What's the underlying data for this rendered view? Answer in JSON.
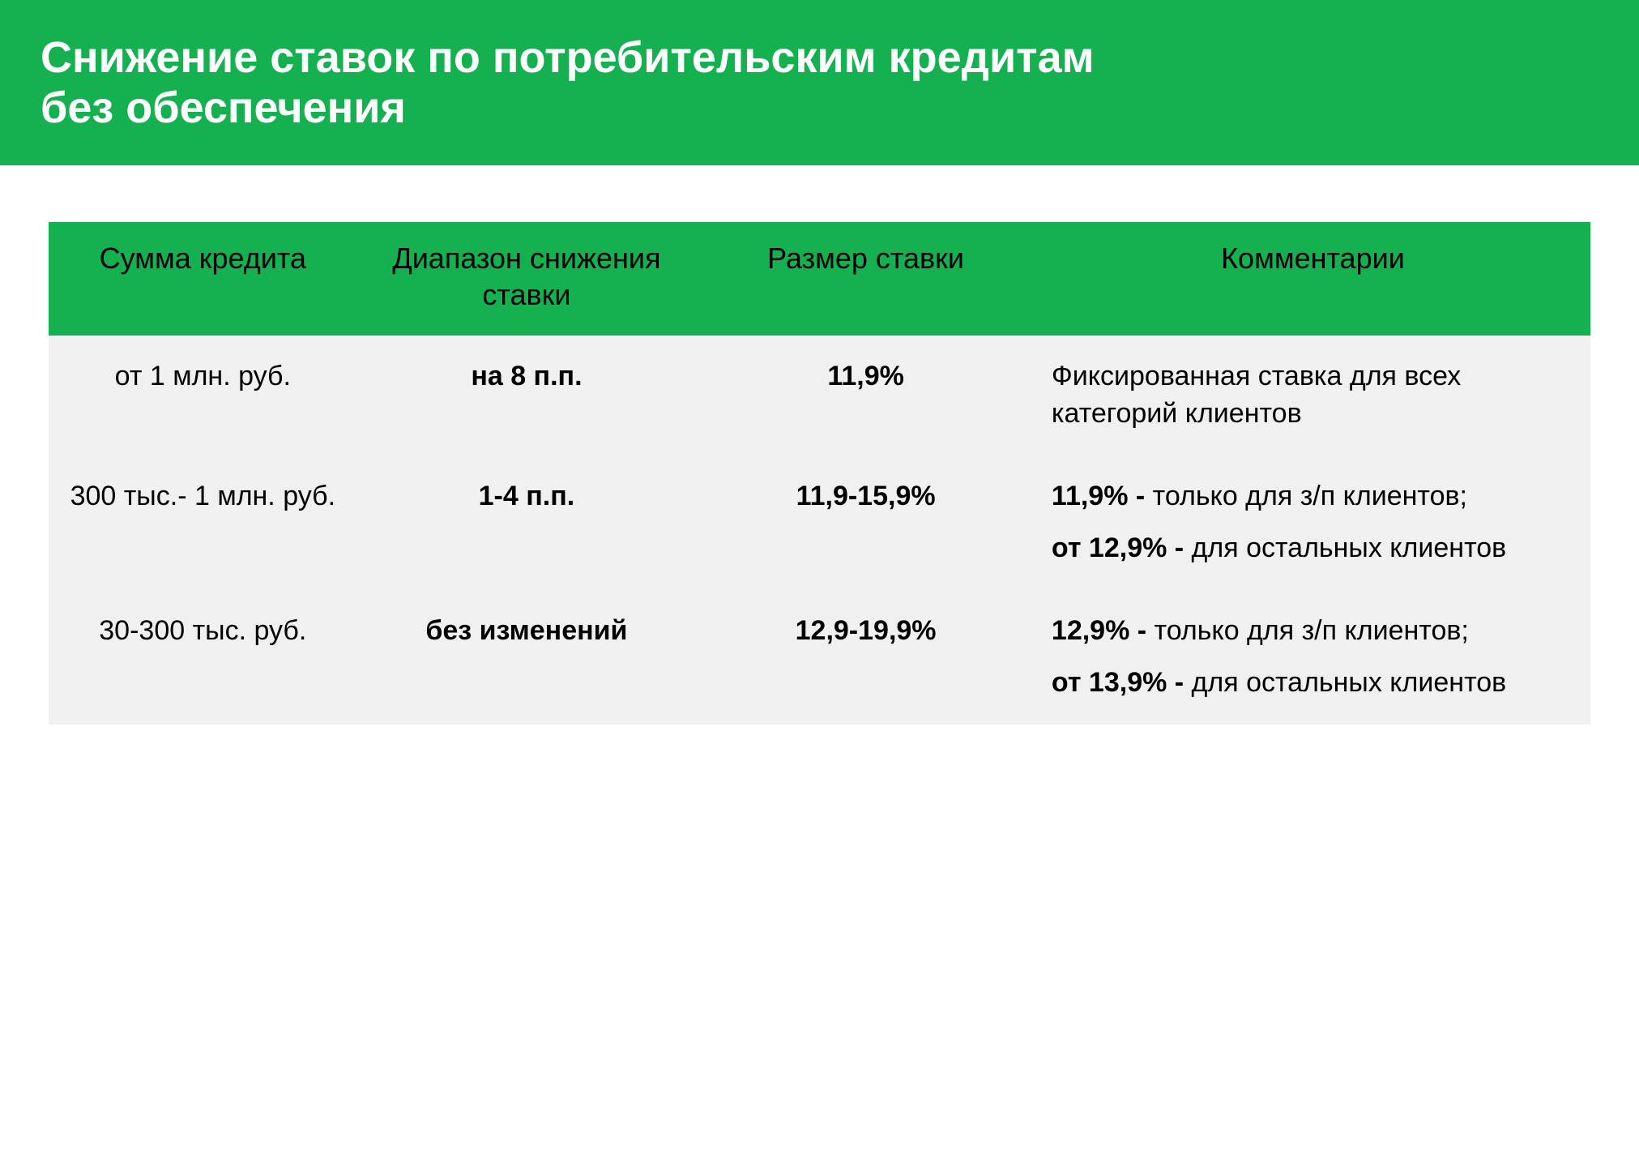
{
  "colors": {
    "brand_green": "#15b050",
    "table_bg": "#f0f0f0",
    "page_bg": "#ffffff",
    "header_text": "#ffffff",
    "body_text": "#000000"
  },
  "header": {
    "title_line1": "Снижение ставок по потребительским кредитам",
    "title_line2": "без обеспечения"
  },
  "table": {
    "columns": [
      "Сумма кредита",
      "Диапазон снижения ставки",
      "Размер ставки",
      "Комментарии"
    ],
    "rows": [
      {
        "amount": "от 1 млн. руб.",
        "range": "на 8 п.п.",
        "rate": "11,9%",
        "comments": [
          {
            "bold": "",
            "rest": "Фиксированная ставка для всех категорий клиентов"
          }
        ]
      },
      {
        "amount": "300 тыс.- 1 млн. руб.",
        "range": "1-4 п.п.",
        "rate": "11,9-15,9%",
        "comments": [
          {
            "bold": "11,9% - ",
            "rest": "только для з/п клиентов;"
          },
          {
            "bold": "от 12,9% - ",
            "rest": "для остальных клиентов"
          }
        ]
      },
      {
        "amount": "30-300 тыс. руб.",
        "range": "без изменений",
        "rate": "12,9-19,9%",
        "comments": [
          {
            "bold": "12,9% - ",
            "rest": "только для з/п клиентов;"
          },
          {
            "bold": "от 13,9% - ",
            "rest": "для остальных клиентов"
          }
        ]
      }
    ]
  }
}
